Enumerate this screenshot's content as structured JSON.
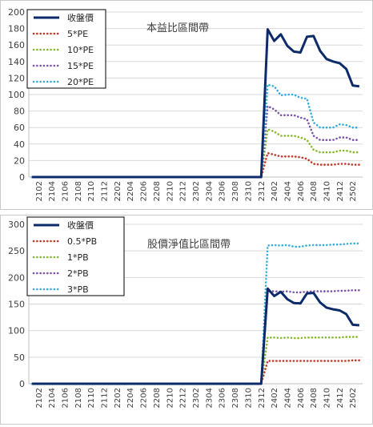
{
  "chart_data": [
    {
      "type": "line",
      "title": "本益比區間帶",
      "xlabel": "",
      "ylabel": "",
      "ylim": [
        0,
        200
      ],
      "yticks": [
        0,
        20,
        40,
        60,
        80,
        100,
        120,
        140,
        160,
        180,
        200
      ],
      "x": [
        "2101",
        "2102",
        "2103",
        "2104",
        "2105",
        "2106",
        "2107",
        "2108",
        "2109",
        "2110",
        "2111",
        "2112",
        "2201",
        "2202",
        "2203",
        "2204",
        "2205",
        "2206",
        "2207",
        "2208",
        "2209",
        "2210",
        "2211",
        "2212",
        "2301",
        "2302",
        "2303",
        "2304",
        "2305",
        "2306",
        "2307",
        "2308",
        "2309",
        "2310",
        "2311",
        "2312",
        "2401",
        "2402",
        "2403",
        "2404",
        "2405",
        "2406",
        "2407",
        "2408",
        "2409",
        "2410",
        "2411",
        "2412",
        "2501",
        "2502",
        "2503"
      ],
      "x_tick_labels": [
        "2102",
        "2104",
        "2106",
        "2108",
        "2110",
        "2112",
        "2202",
        "2204",
        "2206",
        "2208",
        "2210",
        "2212",
        "2302",
        "2304",
        "2306",
        "2308",
        "2310",
        "2312",
        "2402",
        "2404",
        "2406",
        "2408",
        "2410",
        "2412",
        "2502"
      ],
      "legend_position": "top-left",
      "series": [
        {
          "name": "收盤價",
          "color": "#0d2a6b",
          "style": "solid",
          "values": [
            0,
            0,
            0,
            0,
            0,
            0,
            0,
            0,
            0,
            0,
            0,
            0,
            0,
            0,
            0,
            0,
            0,
            0,
            0,
            0,
            0,
            0,
            0,
            0,
            0,
            0,
            0,
            0,
            0,
            0,
            0,
            0,
            0,
            0,
            0,
            0,
            179,
            165,
            173,
            159,
            152,
            151,
            170,
            171,
            153,
            143,
            140,
            138,
            131,
            111,
            110
          ]
        },
        {
          "name": "5*PE",
          "color": "#c0392b",
          "style": "dotted",
          "values": [
            0,
            0,
            0,
            0,
            0,
            0,
            0,
            0,
            0,
            0,
            0,
            0,
            0,
            0,
            0,
            0,
            0,
            0,
            0,
            0,
            0,
            0,
            0,
            0,
            0,
            0,
            0,
            0,
            0,
            0,
            0,
            0,
            0,
            0,
            0,
            0,
            29,
            27,
            25,
            25,
            25,
            24,
            22,
            16,
            15,
            15,
            15,
            16,
            16,
            15,
            15
          ]
        },
        {
          "name": "10*PE",
          "color": "#8ab832",
          "style": "dotted",
          "values": [
            0,
            0,
            0,
            0,
            0,
            0,
            0,
            0,
            0,
            0,
            0,
            0,
            0,
            0,
            0,
            0,
            0,
            0,
            0,
            0,
            0,
            0,
            0,
            0,
            0,
            0,
            0,
            0,
            0,
            0,
            0,
            0,
            0,
            0,
            0,
            0,
            58,
            55,
            50,
            50,
            50,
            48,
            45,
            33,
            30,
            30,
            30,
            32,
            32,
            30,
            30
          ]
        },
        {
          "name": "15*PE",
          "color": "#7a57a8",
          "style": "dotted",
          "values": [
            0,
            0,
            0,
            0,
            0,
            0,
            0,
            0,
            0,
            0,
            0,
            0,
            0,
            0,
            0,
            0,
            0,
            0,
            0,
            0,
            0,
            0,
            0,
            0,
            0,
            0,
            0,
            0,
            0,
            0,
            0,
            0,
            0,
            0,
            0,
            0,
            86,
            82,
            75,
            75,
            75,
            72,
            70,
            50,
            45,
            45,
            45,
            48,
            48,
            45,
            45
          ]
        },
        {
          "name": "20*PE",
          "color": "#3aaed8",
          "style": "dotted",
          "values": [
            0,
            0,
            0,
            0,
            0,
            0,
            0,
            0,
            0,
            0,
            0,
            0,
            0,
            0,
            0,
            0,
            0,
            0,
            0,
            0,
            0,
            0,
            0,
            0,
            0,
            0,
            0,
            0,
            0,
            0,
            0,
            0,
            0,
            0,
            0,
            0,
            112,
            110,
            99,
            100,
            100,
            96,
            95,
            66,
            60,
            60,
            60,
            64,
            63,
            60,
            60
          ]
        }
      ]
    },
    {
      "type": "line",
      "title": "股價淨值比區間帶",
      "xlabel": "",
      "ylabel": "",
      "ylim": [
        0,
        300
      ],
      "yticks": [
        0,
        50,
        100,
        150,
        200,
        250,
        300
      ],
      "x": [
        "2101",
        "2102",
        "2103",
        "2104",
        "2105",
        "2106",
        "2107",
        "2108",
        "2109",
        "2110",
        "2111",
        "2112",
        "2201",
        "2202",
        "2203",
        "2204",
        "2205",
        "2206",
        "2207",
        "2208",
        "2209",
        "2210",
        "2211",
        "2212",
        "2301",
        "2302",
        "2303",
        "2304",
        "2305",
        "2306",
        "2307",
        "2308",
        "2309",
        "2310",
        "2311",
        "2312",
        "2401",
        "2402",
        "2403",
        "2404",
        "2405",
        "2406",
        "2407",
        "2408",
        "2409",
        "2410",
        "2411",
        "2412",
        "2501",
        "2502",
        "2503"
      ],
      "x_tick_labels": [
        "2102",
        "2104",
        "2106",
        "2108",
        "2110",
        "2112",
        "2202",
        "2204",
        "2206",
        "2208",
        "2210",
        "2212",
        "2302",
        "2304",
        "2306",
        "2308",
        "2310",
        "2312",
        "2402",
        "2404",
        "2406",
        "2408",
        "2410",
        "2412",
        "2502"
      ],
      "legend_position": "top-left",
      "series": [
        {
          "name": "收盤價",
          "color": "#0d2a6b",
          "style": "solid",
          "values": [
            0,
            0,
            0,
            0,
            0,
            0,
            0,
            0,
            0,
            0,
            0,
            0,
            0,
            0,
            0,
            0,
            0,
            0,
            0,
            0,
            0,
            0,
            0,
            0,
            0,
            0,
            0,
            0,
            0,
            0,
            0,
            0,
            0,
            0,
            0,
            0,
            179,
            165,
            173,
            159,
            152,
            151,
            170,
            171,
            153,
            143,
            140,
            138,
            131,
            111,
            110
          ]
        },
        {
          "name": "0.5*PB",
          "color": "#c0392b",
          "style": "dotted",
          "values": [
            0,
            0,
            0,
            0,
            0,
            0,
            0,
            0,
            0,
            0,
            0,
            0,
            0,
            0,
            0,
            0,
            0,
            0,
            0,
            0,
            0,
            0,
            0,
            0,
            0,
            0,
            0,
            0,
            0,
            0,
            0,
            0,
            0,
            0,
            0,
            0,
            43,
            43,
            43,
            43,
            43,
            43,
            43,
            43,
            43,
            43,
            43,
            43,
            43,
            44,
            44
          ]
        },
        {
          "name": "1*PB",
          "color": "#8ab832",
          "style": "dotted",
          "values": [
            0,
            0,
            0,
            0,
            0,
            0,
            0,
            0,
            0,
            0,
            0,
            0,
            0,
            0,
            0,
            0,
            0,
            0,
            0,
            0,
            0,
            0,
            0,
            0,
            0,
            0,
            0,
            0,
            0,
            0,
            0,
            0,
            0,
            0,
            0,
            0,
            87,
            87,
            86,
            87,
            86,
            86,
            87,
            87,
            87,
            87,
            87,
            87,
            88,
            88,
            88
          ]
        },
        {
          "name": "2*PB",
          "color": "#7a57a8",
          "style": "dotted",
          "values": [
            0,
            0,
            0,
            0,
            0,
            0,
            0,
            0,
            0,
            0,
            0,
            0,
            0,
            0,
            0,
            0,
            0,
            0,
            0,
            0,
            0,
            0,
            0,
            0,
            0,
            0,
            0,
            0,
            0,
            0,
            0,
            0,
            0,
            0,
            0,
            0,
            174,
            174,
            173,
            174,
            172,
            172,
            173,
            174,
            174,
            174,
            174,
            175,
            175,
            176,
            176
          ]
        },
        {
          "name": "3*PB",
          "color": "#3aaed8",
          "style": "dotted",
          "values": [
            0,
            0,
            0,
            0,
            0,
            0,
            0,
            0,
            0,
            0,
            0,
            0,
            0,
            0,
            0,
            0,
            0,
            0,
            0,
            0,
            0,
            0,
            0,
            0,
            0,
            0,
            0,
            0,
            0,
            0,
            0,
            0,
            0,
            0,
            0,
            0,
            260,
            261,
            260,
            261,
            258,
            258,
            260,
            261,
            261,
            261,
            262,
            262,
            263,
            264,
            264
          ]
        }
      ]
    }
  ]
}
